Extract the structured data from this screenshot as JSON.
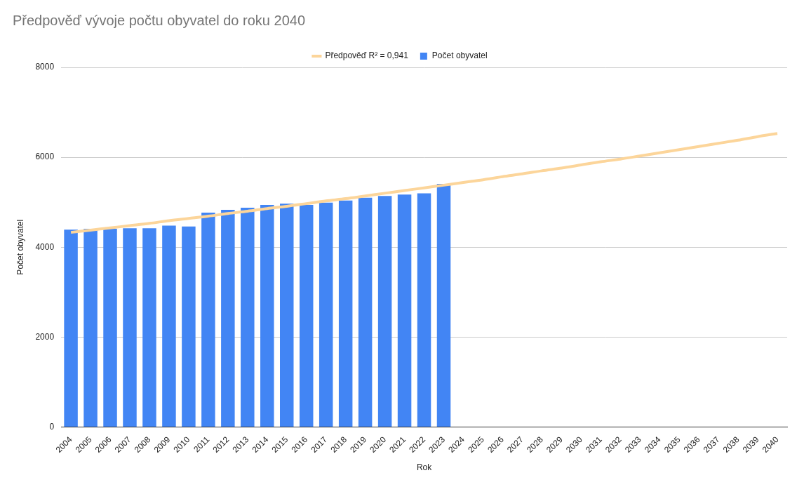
{
  "chart_data": {
    "type": "bar",
    "title": "Předpověď vývoje počtu obyvatel do roku 2040",
    "x_label": "Rok",
    "y_label": "Počet obyvatel",
    "categories": [
      "2004",
      "2005",
      "2006",
      "2007",
      "2008",
      "2009",
      "2010",
      "2011",
      "2012",
      "2013",
      "2014",
      "2015",
      "2016",
      "2017",
      "2018",
      "2019",
      "2020",
      "2021",
      "2022",
      "2023",
      "2024",
      "2025",
      "2026",
      "2027",
      "2028",
      "2029",
      "2030",
      "2031",
      "2032",
      "2033",
      "2034",
      "2035",
      "2036",
      "2037",
      "2038",
      "2039",
      "2040"
    ],
    "series": [
      {
        "name": "Počet obyvatel",
        "type": "bar",
        "color": "#4285f4",
        "values": [
          4390,
          4410,
          4410,
          4420,
          4420,
          4480,
          4460,
          4770,
          4830,
          4880,
          4940,
          4970,
          4940,
          4990,
          5040,
          5100,
          5140,
          5170,
          5200,
          5410,
          null,
          null,
          null,
          null,
          null,
          null,
          null,
          null,
          null,
          null,
          null,
          null,
          null,
          null,
          null,
          null,
          null
        ]
      },
      {
        "name": "Předpověď R² = 0,941",
        "type": "line",
        "color": "#fcd59a",
        "values": [
          4330,
          4380,
          4430,
          4480,
          4530,
          4590,
          4640,
          4690,
          4750,
          4800,
          4860,
          4910,
          4970,
          5030,
          5080,
          5140,
          5200,
          5260,
          5320,
          5380,
          5440,
          5500,
          5570,
          5630,
          5700,
          5760,
          5830,
          5900,
          5960,
          6030,
          6100,
          6170,
          6240,
          6310,
          6380,
          6460,
          6530
        ]
      }
    ],
    "ylim": [
      0,
      8000
    ],
    "yticks": [
      0,
      2000,
      4000,
      6000,
      8000
    ],
    "grid": true,
    "legend": "top"
  }
}
